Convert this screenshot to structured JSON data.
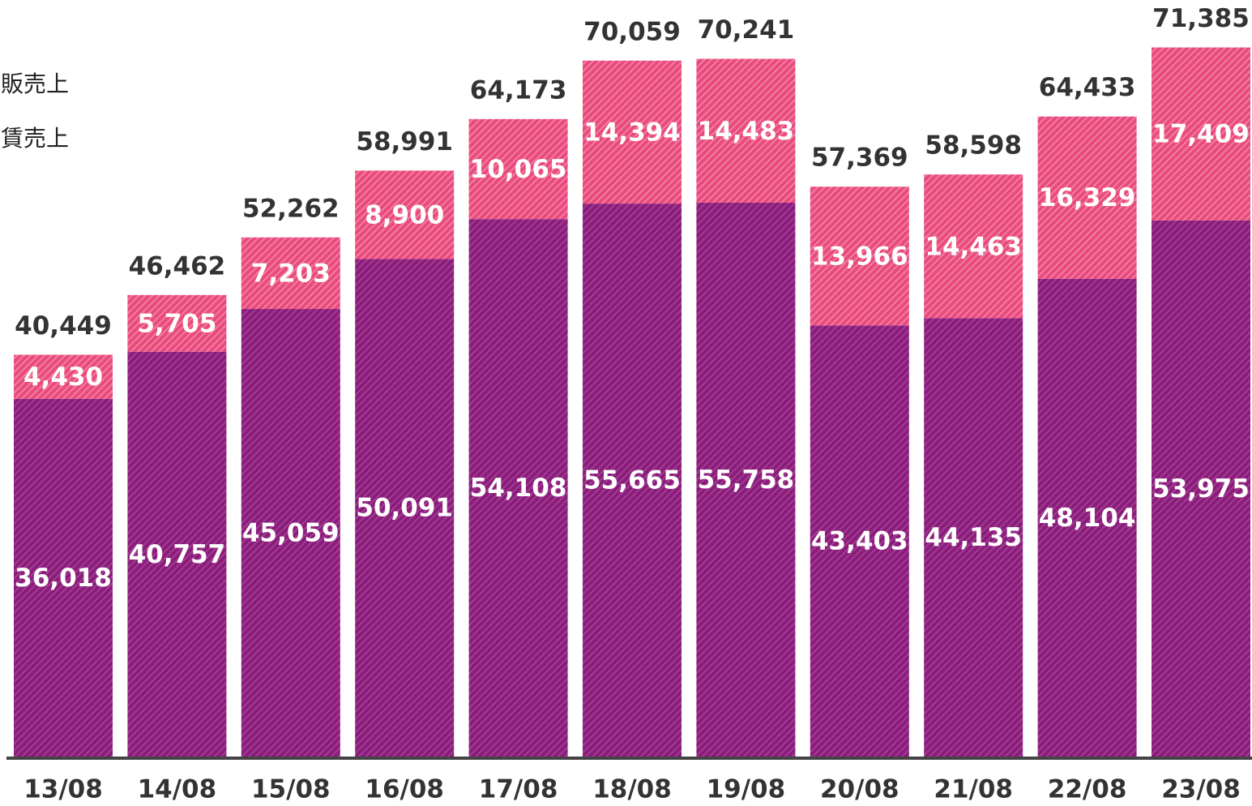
{
  "chart_data": {
    "type": "stacked-bar",
    "categories": [
      "13/08",
      "14/08",
      "15/08",
      "16/08",
      "17/08",
      "18/08",
      "19/08",
      "20/08",
      "21/08",
      "22/08",
      "23/08"
    ],
    "series": [
      {
        "name": "賃売上",
        "color": "#8c1c7c",
        "values": [
          36018,
          40757,
          45059,
          50091,
          54108,
          55665,
          55758,
          43403,
          44135,
          48104,
          53975
        ],
        "value_labels": [
          "36,018",
          "40,757",
          "45,059",
          "50,091",
          "54,108",
          "55,665",
          "55,758",
          "43,403",
          "44,135",
          "48,104",
          "53,975"
        ]
      },
      {
        "name": "販売上",
        "color": "#ea4a7c",
        "values": [
          4430,
          5705,
          7203,
          8900,
          10065,
          14394,
          14483,
          13966,
          14463,
          16329,
          17409
        ],
        "value_labels": [
          "4,430",
          "5,705",
          "7,203",
          "8,900",
          "10,065",
          "14,394",
          "14,483",
          "13,966",
          "14,463",
          "16,329",
          "17,409"
        ]
      }
    ],
    "totals": {
      "values": [
        40449,
        46462,
        52262,
        58991,
        64173,
        70059,
        70241,
        57369,
        58598,
        64433,
        71385
      ],
      "value_labels": [
        "40,449",
        "46,462",
        "52,262",
        "58,991",
        "64,173",
        "70,059",
        "70,241",
        "57,369",
        "58,598",
        "64,433",
        "71,385"
      ]
    },
    "ylim": [
      0,
      76000
    ]
  }
}
